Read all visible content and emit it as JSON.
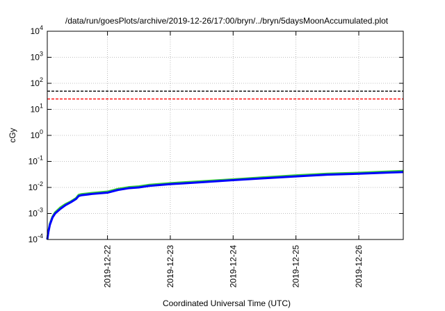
{
  "chart_data": {
    "type": "line",
    "title": "/data/run/goesPlots/archive/2019-12-26/17:00/bryn/../bryn/5daysMoonAccumulated.plot",
    "xlabel": "Coordinated Universal Time (UTC)",
    "ylabel": "cGy",
    "yscale": "log",
    "ylim": [
      0.0001,
      10000
    ],
    "xlim": [
      "2019-12-21T01:00",
      "2019-12-26T17:00"
    ],
    "grid": true,
    "x_ticks": [
      "2019-12-22",
      "2019-12-23",
      "2019-12-24",
      "2019-12-25",
      "2019-12-26"
    ],
    "y_ticks": [
      {
        "value": 0.0001,
        "base": "10",
        "exp": "-4"
      },
      {
        "value": 0.001,
        "base": "10",
        "exp": "-3"
      },
      {
        "value": 0.01,
        "base": "10",
        "exp": "-2"
      },
      {
        "value": 0.1,
        "base": "10",
        "exp": "-1"
      },
      {
        "value": 1,
        "base": "10",
        "exp": "0"
      },
      {
        "value": 10,
        "base": "10",
        "exp": "1"
      },
      {
        "value": 100,
        "base": "10",
        "exp": "2"
      },
      {
        "value": 1000,
        "base": "10",
        "exp": "3"
      },
      {
        "value": 10000,
        "base": "10",
        "exp": "4"
      }
    ],
    "reference_lines": [
      {
        "value": 50,
        "color": "#000000",
        "style": "dashed"
      },
      {
        "value": 25,
        "color": "#ff0000",
        "style": "dashed"
      }
    ],
    "series": [
      {
        "color": "#33cc33",
        "x": [
          "2019-12-21T01:00",
          "2019-12-21T01:24",
          "2019-12-21T02:00",
          "2019-12-21T03:00",
          "2019-12-21T04:00",
          "2019-12-21T06:00",
          "2019-12-21T08:00",
          "2019-12-21T10:00",
          "2019-12-21T12:00",
          "2019-12-21T13:00",
          "2019-12-21T14:00",
          "2019-12-21T18:00",
          "2019-12-22T00:00",
          "2019-12-22T04:00",
          "2019-12-22T08:00",
          "2019-12-22T12:00",
          "2019-12-22T16:00",
          "2019-12-23T00:00",
          "2019-12-23T12:00",
          "2019-12-24T00:00",
          "2019-12-24T12:00",
          "2019-12-25T00:00",
          "2019-12-25T12:00",
          "2019-12-26T00:00",
          "2019-12-26T12:00",
          "2019-12-26T17:00"
        ],
        "y": [
          0.0001,
          0.0002,
          0.0004,
          0.00075,
          0.0011,
          0.0017,
          0.0023,
          0.0029,
          0.0039,
          0.0052,
          0.0055,
          0.0061,
          0.0069,
          0.0088,
          0.0102,
          0.011,
          0.0126,
          0.0146,
          0.0172,
          0.0205,
          0.0245,
          0.029,
          0.0335,
          0.0365,
          0.041,
          0.043
        ]
      },
      {
        "color": "#0000ff",
        "x": [
          "2019-12-21T01:00",
          "2019-12-21T01:24",
          "2019-12-21T02:00",
          "2019-12-21T03:00",
          "2019-12-21T04:00",
          "2019-12-21T06:00",
          "2019-12-21T08:00",
          "2019-12-21T10:00",
          "2019-12-21T12:00",
          "2019-12-21T13:00",
          "2019-12-21T14:00",
          "2019-12-21T18:00",
          "2019-12-22T00:00",
          "2019-12-22T04:00",
          "2019-12-22T08:00",
          "2019-12-22T12:00",
          "2019-12-22T16:00",
          "2019-12-23T00:00",
          "2019-12-23T12:00",
          "2019-12-24T00:00",
          "2019-12-24T12:00",
          "2019-12-25T00:00",
          "2019-12-25T12:00",
          "2019-12-26T00:00",
          "2019-12-26T12:00",
          "2019-12-26T17:00"
        ],
        "y": [
          0.0001,
          0.00019,
          0.00037,
          0.0007,
          0.001,
          0.0015,
          0.0021,
          0.0027,
          0.0036,
          0.0047,
          0.005,
          0.0056,
          0.0063,
          0.008,
          0.0093,
          0.01,
          0.0115,
          0.0134,
          0.0158,
          0.019,
          0.0225,
          0.0265,
          0.031,
          0.0335,
          0.0375,
          0.039
        ]
      }
    ]
  }
}
